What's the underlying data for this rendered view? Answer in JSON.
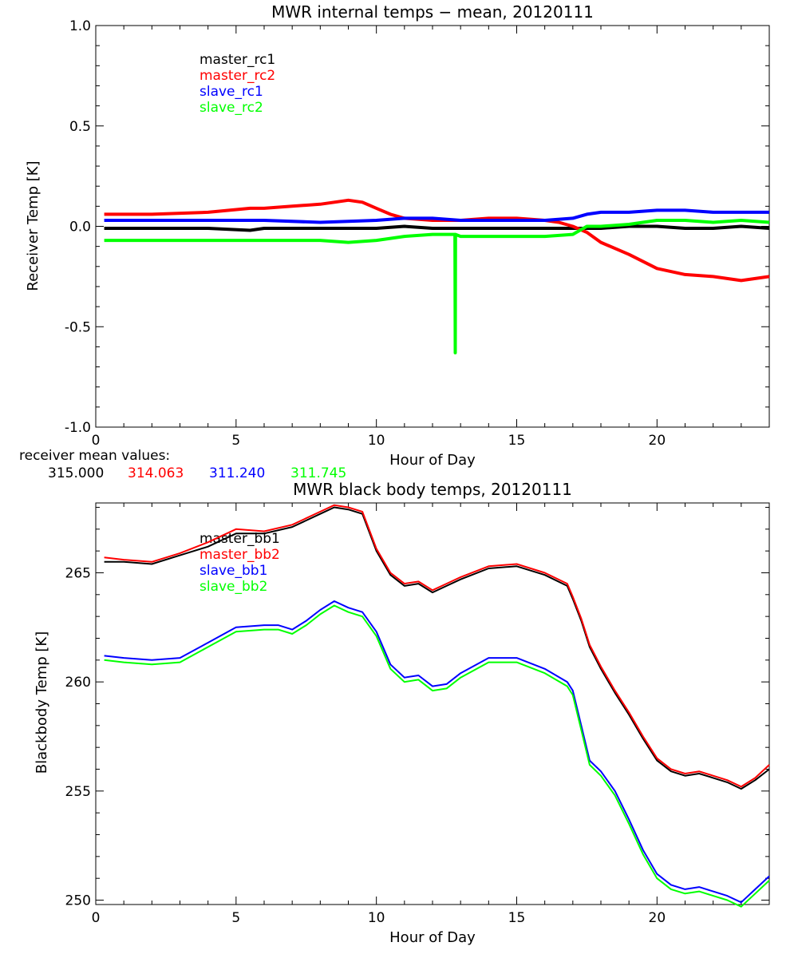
{
  "chart_data": [
    {
      "type": "line",
      "title": "MWR internal temps − mean, 20120111",
      "xlabel": "Hour of Day",
      "ylabel": "Receiver Temp [K]",
      "xlim": [
        0,
        24
      ],
      "ylim": [
        -1.0,
        1.0
      ],
      "xticks": [
        "0",
        "5",
        "10",
        "15",
        "20"
      ],
      "yticks": [
        "1.0",
        "0.5",
        "0.0",
        "-0.5",
        "-1.0"
      ],
      "legend_placement": "top-left",
      "series": [
        {
          "name": "master_rc1",
          "color": "#000000",
          "x": [
            0.3,
            2,
            4,
            5.5,
            6,
            8,
            10,
            11,
            12,
            13,
            14,
            15,
            16,
            17,
            18,
            19,
            20,
            21,
            22,
            23,
            24
          ],
          "y": [
            -0.01,
            -0.01,
            -0.01,
            -0.02,
            -0.01,
            -0.01,
            -0.01,
            0.0,
            -0.01,
            -0.01,
            -0.01,
            -0.01,
            -0.01,
            -0.01,
            -0.01,
            0.0,
            0.0,
            -0.01,
            -0.01,
            0.0,
            -0.01
          ]
        },
        {
          "name": "master_rc2",
          "color": "#ff0000",
          "x": [
            0.3,
            2,
            4,
            5.5,
            6,
            7,
            8,
            9,
            9.5,
            10,
            10.5,
            11,
            12,
            13,
            14,
            15,
            16,
            16.5,
            17,
            17.5,
            18,
            19,
            20,
            21,
            22,
            23,
            24
          ],
          "y": [
            0.06,
            0.06,
            0.07,
            0.09,
            0.09,
            0.1,
            0.11,
            0.13,
            0.12,
            0.09,
            0.06,
            0.04,
            0.03,
            0.03,
            0.04,
            0.04,
            0.03,
            0.02,
            0.0,
            -0.03,
            -0.08,
            -0.14,
            -0.21,
            -0.24,
            -0.25,
            -0.27,
            -0.25
          ]
        },
        {
          "name": "slave_rc1",
          "color": "#0000ff",
          "x": [
            0.3,
            2,
            4,
            5.5,
            6,
            8,
            10,
            11,
            12,
            13,
            14,
            15,
            16,
            17,
            17.5,
            18,
            19,
            20,
            21,
            22,
            23,
            24
          ],
          "y": [
            0.03,
            0.03,
            0.03,
            0.03,
            0.03,
            0.02,
            0.03,
            0.04,
            0.04,
            0.03,
            0.03,
            0.03,
            0.03,
            0.04,
            0.06,
            0.07,
            0.07,
            0.08,
            0.08,
            0.07,
            0.07,
            0.07
          ]
        },
        {
          "name": "slave_rc2",
          "color": "#00ff00",
          "x": [
            0.3,
            2,
            4,
            5.5,
            6,
            8,
            9,
            10,
            11,
            12,
            12.8,
            12.81,
            12.82,
            13,
            14,
            15,
            16,
            17,
            17.5,
            18,
            19,
            20,
            21,
            22,
            23,
            24
          ],
          "y": [
            -0.07,
            -0.07,
            -0.07,
            -0.07,
            -0.07,
            -0.07,
            -0.08,
            -0.07,
            -0.05,
            -0.04,
            -0.04,
            -0.63,
            -0.04,
            -0.05,
            -0.05,
            -0.05,
            -0.05,
            -0.04,
            0.0,
            0.0,
            0.01,
            0.03,
            0.03,
            0.02,
            0.03,
            0.02
          ]
        }
      ],
      "annotation": {
        "label": "receiver mean values:",
        "values": [
          "315.000",
          "314.063",
          "311.240",
          "311.745"
        ]
      }
    },
    {
      "type": "line",
      "title": "MWR black body temps, 20120111",
      "xlabel": "Hour of Day",
      "ylabel": "Blackbody Temp [K]",
      "xlim": [
        0,
        24
      ],
      "ylim": [
        249.8,
        268.2
      ],
      "xticks": [
        "0",
        "5",
        "10",
        "15",
        "20"
      ],
      "yticks": [
        "265",
        "260",
        "255",
        "250"
      ],
      "legend_placement": "top-left",
      "series": [
        {
          "name": "master_bb1",
          "color": "#000000",
          "x": [
            0.3,
            1,
            2,
            3,
            4,
            5,
            6,
            7,
            8,
            8.5,
            9,
            9.5,
            10,
            10.5,
            11,
            11.5,
            12,
            12.5,
            13,
            14,
            15,
            16,
            16.8,
            17,
            17.3,
            17.6,
            18,
            18.5,
            19,
            19.5,
            20,
            20.5,
            21,
            21.5,
            22,
            22.5,
            23,
            23.5,
            24
          ],
          "y": [
            265.5,
            265.5,
            265.4,
            265.8,
            266.2,
            266.8,
            266.8,
            267.1,
            267.7,
            268.0,
            267.9,
            267.7,
            266.0,
            264.9,
            264.4,
            264.5,
            264.1,
            264.4,
            264.7,
            265.2,
            265.3,
            264.9,
            264.4,
            263.8,
            262.8,
            261.6,
            260.6,
            259.5,
            258.5,
            257.4,
            256.4,
            255.9,
            255.7,
            255.8,
            255.6,
            255.4,
            255.1,
            255.5,
            256.0
          ]
        },
        {
          "name": "master_bb2",
          "color": "#ff0000",
          "x": [
            0.3,
            1,
            2,
            3,
            4,
            5,
            6,
            7,
            8,
            8.5,
            9,
            9.5,
            10,
            10.5,
            11,
            11.5,
            12,
            12.5,
            13,
            14,
            15,
            16,
            16.8,
            17,
            17.3,
            17.6,
            18,
            18.5,
            19,
            19.5,
            20,
            20.5,
            21,
            21.5,
            22,
            22.5,
            23,
            23.5,
            24
          ],
          "y": [
            265.7,
            265.6,
            265.5,
            265.9,
            266.4,
            267.0,
            266.9,
            267.2,
            267.8,
            268.1,
            268.0,
            267.8,
            266.1,
            265.0,
            264.5,
            264.6,
            264.2,
            264.5,
            264.8,
            265.3,
            265.4,
            265.0,
            264.5,
            263.9,
            262.9,
            261.7,
            260.7,
            259.6,
            258.6,
            257.5,
            256.5,
            256.0,
            255.8,
            255.9,
            255.7,
            255.5,
            255.2,
            255.6,
            256.2
          ]
        },
        {
          "name": "slave_bb1",
          "color": "#0000ff",
          "x": [
            0.3,
            1,
            2,
            3,
            4,
            5,
            6,
            6.5,
            7,
            7.5,
            8,
            8.5,
            9,
            9.5,
            10,
            10.5,
            11,
            11.5,
            12,
            12.5,
            13,
            14,
            15,
            16,
            16.8,
            17,
            17.3,
            17.6,
            18,
            18.5,
            19,
            19.5,
            20,
            20.5,
            21,
            21.5,
            22,
            22.5,
            23,
            23.5,
            24
          ],
          "y": [
            261.2,
            261.1,
            261.0,
            261.1,
            261.8,
            262.5,
            262.6,
            262.6,
            262.4,
            262.8,
            263.3,
            263.7,
            263.4,
            263.2,
            262.3,
            260.8,
            260.2,
            260.3,
            259.8,
            259.9,
            260.4,
            261.1,
            261.1,
            260.6,
            260.0,
            259.6,
            258.0,
            256.4,
            255.9,
            255.0,
            253.7,
            252.3,
            251.2,
            250.7,
            250.5,
            250.6,
            250.4,
            250.2,
            249.9,
            250.5,
            251.1
          ]
        },
        {
          "name": "slave_bb2",
          "color": "#00ff00",
          "x": [
            0.3,
            1,
            2,
            3,
            4,
            5,
            6,
            6.5,
            7,
            7.5,
            8,
            8.5,
            9,
            9.5,
            10,
            10.5,
            11,
            11.5,
            12,
            12.5,
            13,
            14,
            15,
            16,
            16.8,
            17,
            17.3,
            17.6,
            18,
            18.5,
            19,
            19.5,
            20,
            20.5,
            21,
            21.5,
            22,
            22.5,
            23,
            23.5,
            24
          ],
          "y": [
            261.0,
            260.9,
            260.8,
            260.9,
            261.6,
            262.3,
            262.4,
            262.4,
            262.2,
            262.6,
            263.1,
            263.5,
            263.2,
            263.0,
            262.1,
            260.6,
            260.0,
            260.1,
            259.6,
            259.7,
            260.2,
            260.9,
            260.9,
            260.4,
            259.8,
            259.4,
            257.8,
            256.2,
            255.7,
            254.8,
            253.5,
            252.1,
            251.0,
            250.5,
            250.3,
            250.4,
            250.2,
            250.0,
            249.7,
            250.3,
            250.9
          ]
        }
      ]
    }
  ]
}
